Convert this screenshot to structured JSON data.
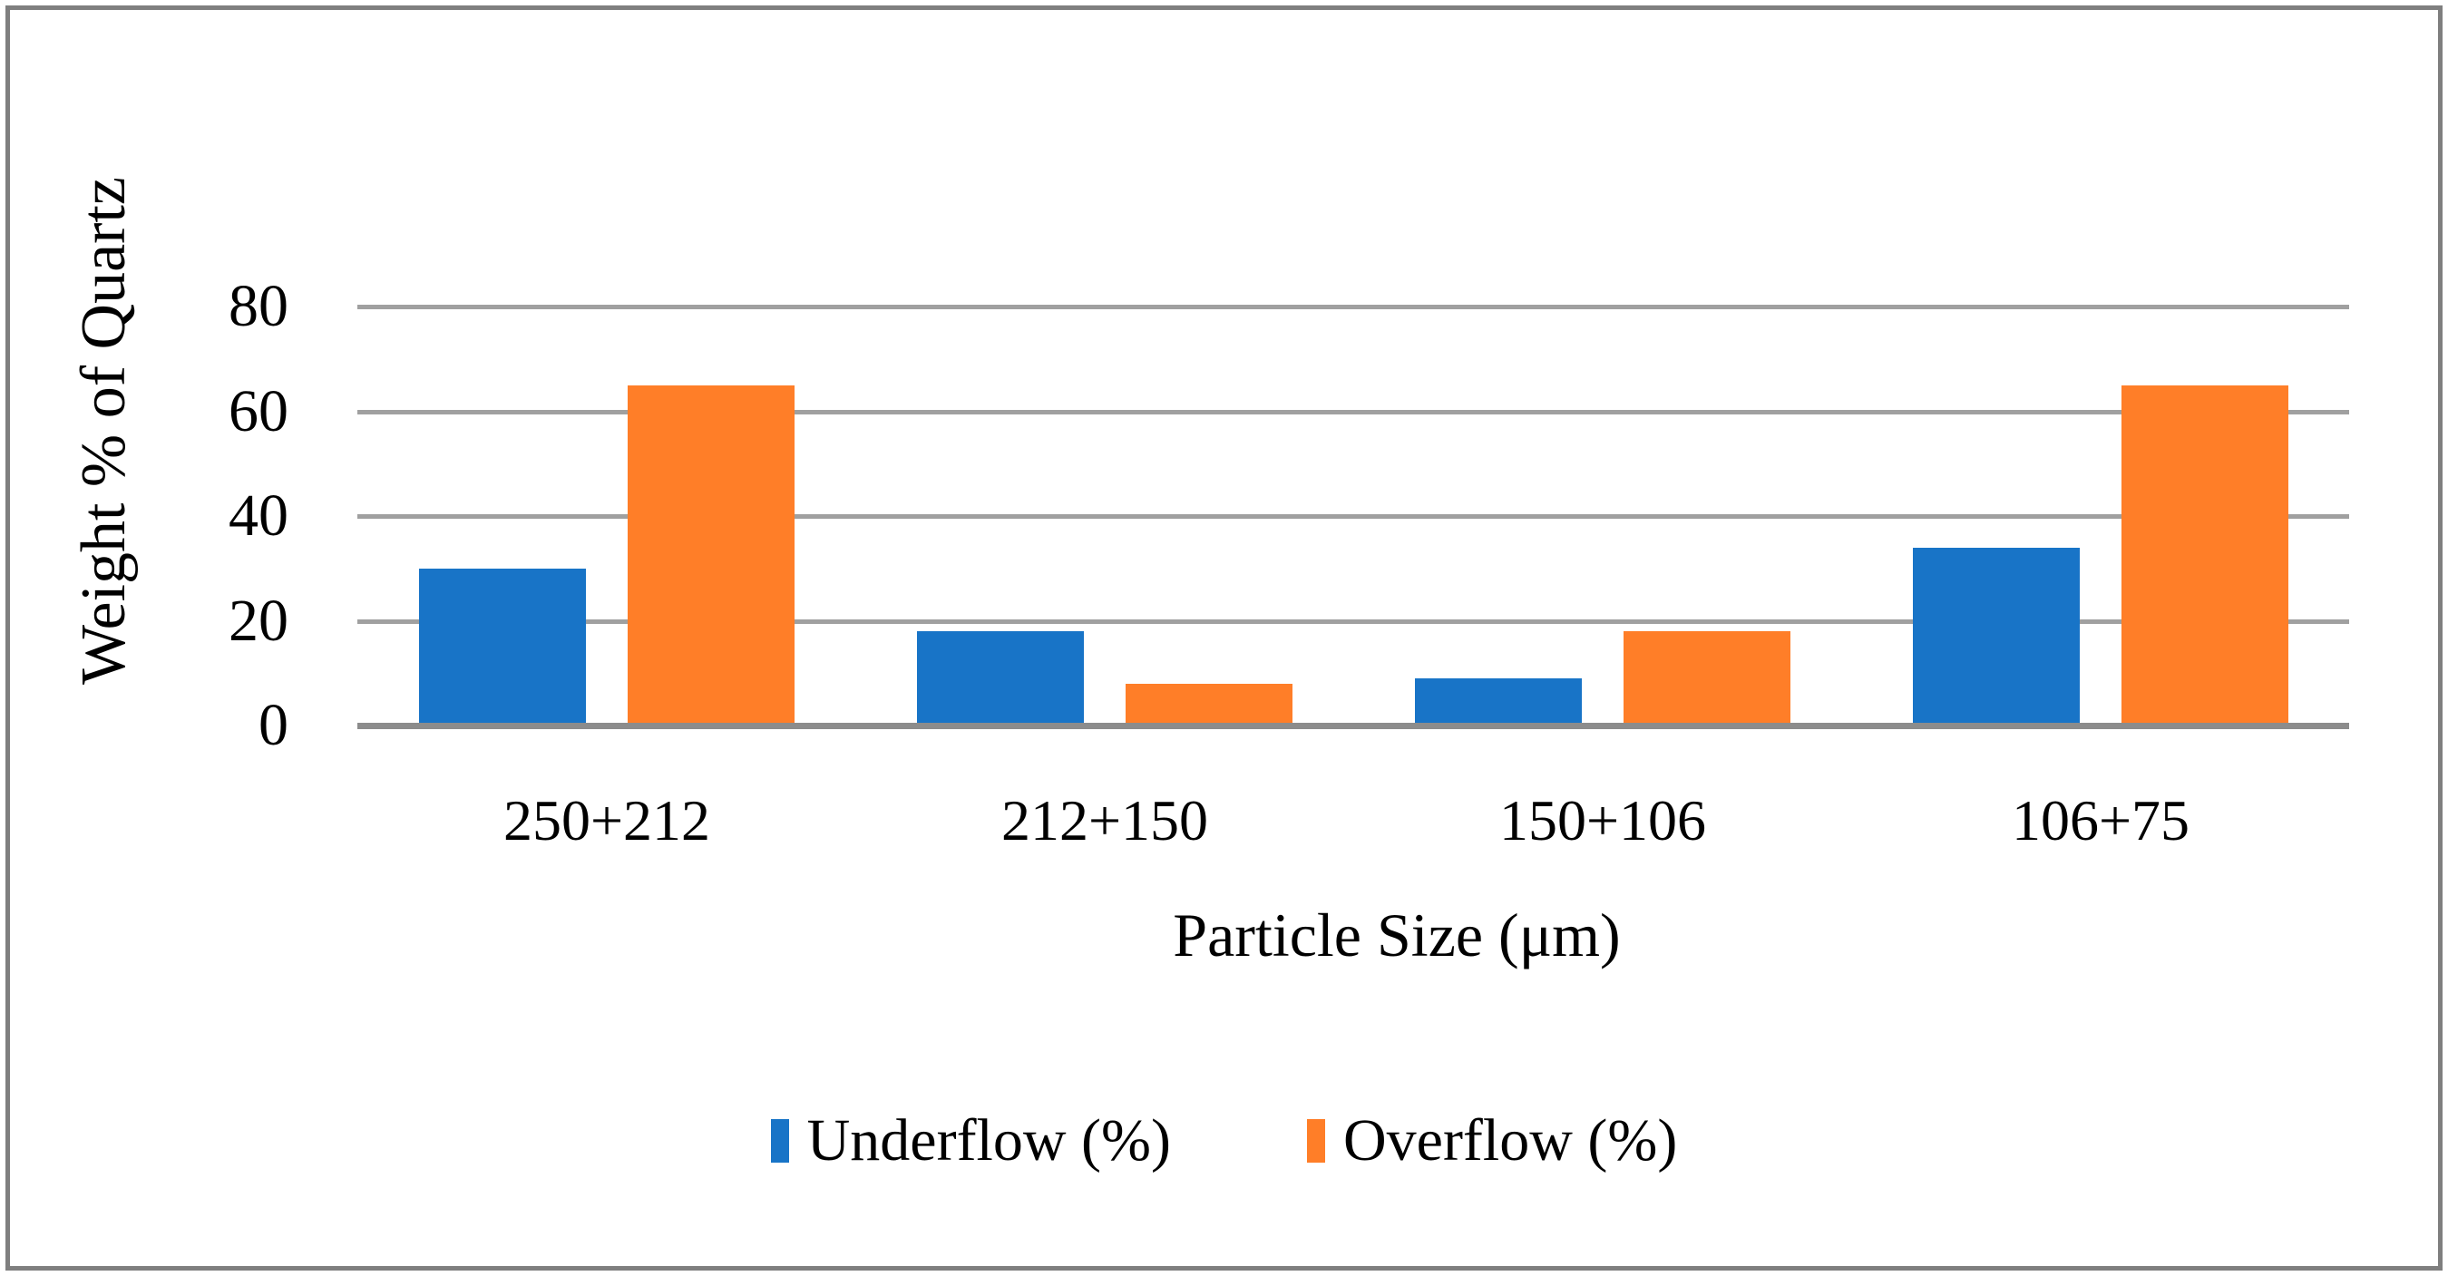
{
  "chart_data": {
    "type": "bar",
    "title": "",
    "categories": [
      "250+212",
      "212+150",
      "150+106",
      "106+75"
    ],
    "series": [
      {
        "name": "Underflow (%)",
        "color": "#1874C7",
        "values": [
          30,
          18,
          9,
          34
        ]
      },
      {
        "name": "Overflow (%)",
        "color": "#FF7E28",
        "values": [
          65,
          8,
          18,
          65
        ]
      }
    ],
    "xlabel": "Particle Size (μm)",
    "ylabel": "Weight % of Quartz",
    "yticks": [
      0,
      20,
      40,
      60,
      80
    ],
    "ylim": [
      0,
      90
    ],
    "grid": true,
    "legend_position": "bottom-center"
  },
  "colors": {
    "underflow_blue": "#1874C7",
    "overflow_orange": "#FF7E28",
    "gridline": "#A0A0A0",
    "axis_line": "#8C8C8C",
    "border": "#7F7F7F",
    "text": "#000000",
    "background": "#FFFFFF"
  }
}
